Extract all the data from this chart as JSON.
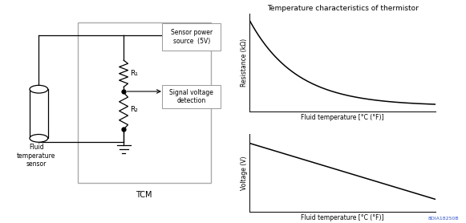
{
  "bg_color": "#ffffff",
  "title": "Temperature characteristics of thermistor",
  "ylabel_top": "Resistance (kΩ)",
  "xlabel_top": "Fluid temperature [°C (°F)]",
  "ylabel_bot": "Voltage (V)",
  "xlabel_bot": "Fluid temperature [°C (°F)]",
  "tcm_label": "TCM",
  "sensor_label": "Fluid\ntemperature\nsensor",
  "r1_label": "R₁",
  "r2_label": "R₂",
  "power_label": "Sensor power\nsource  (5V)",
  "signal_label": "Signal voltage\ndetection",
  "watermark": "8DIA18250B",
  "line_color": "#000000",
  "box_edge": "#999999"
}
